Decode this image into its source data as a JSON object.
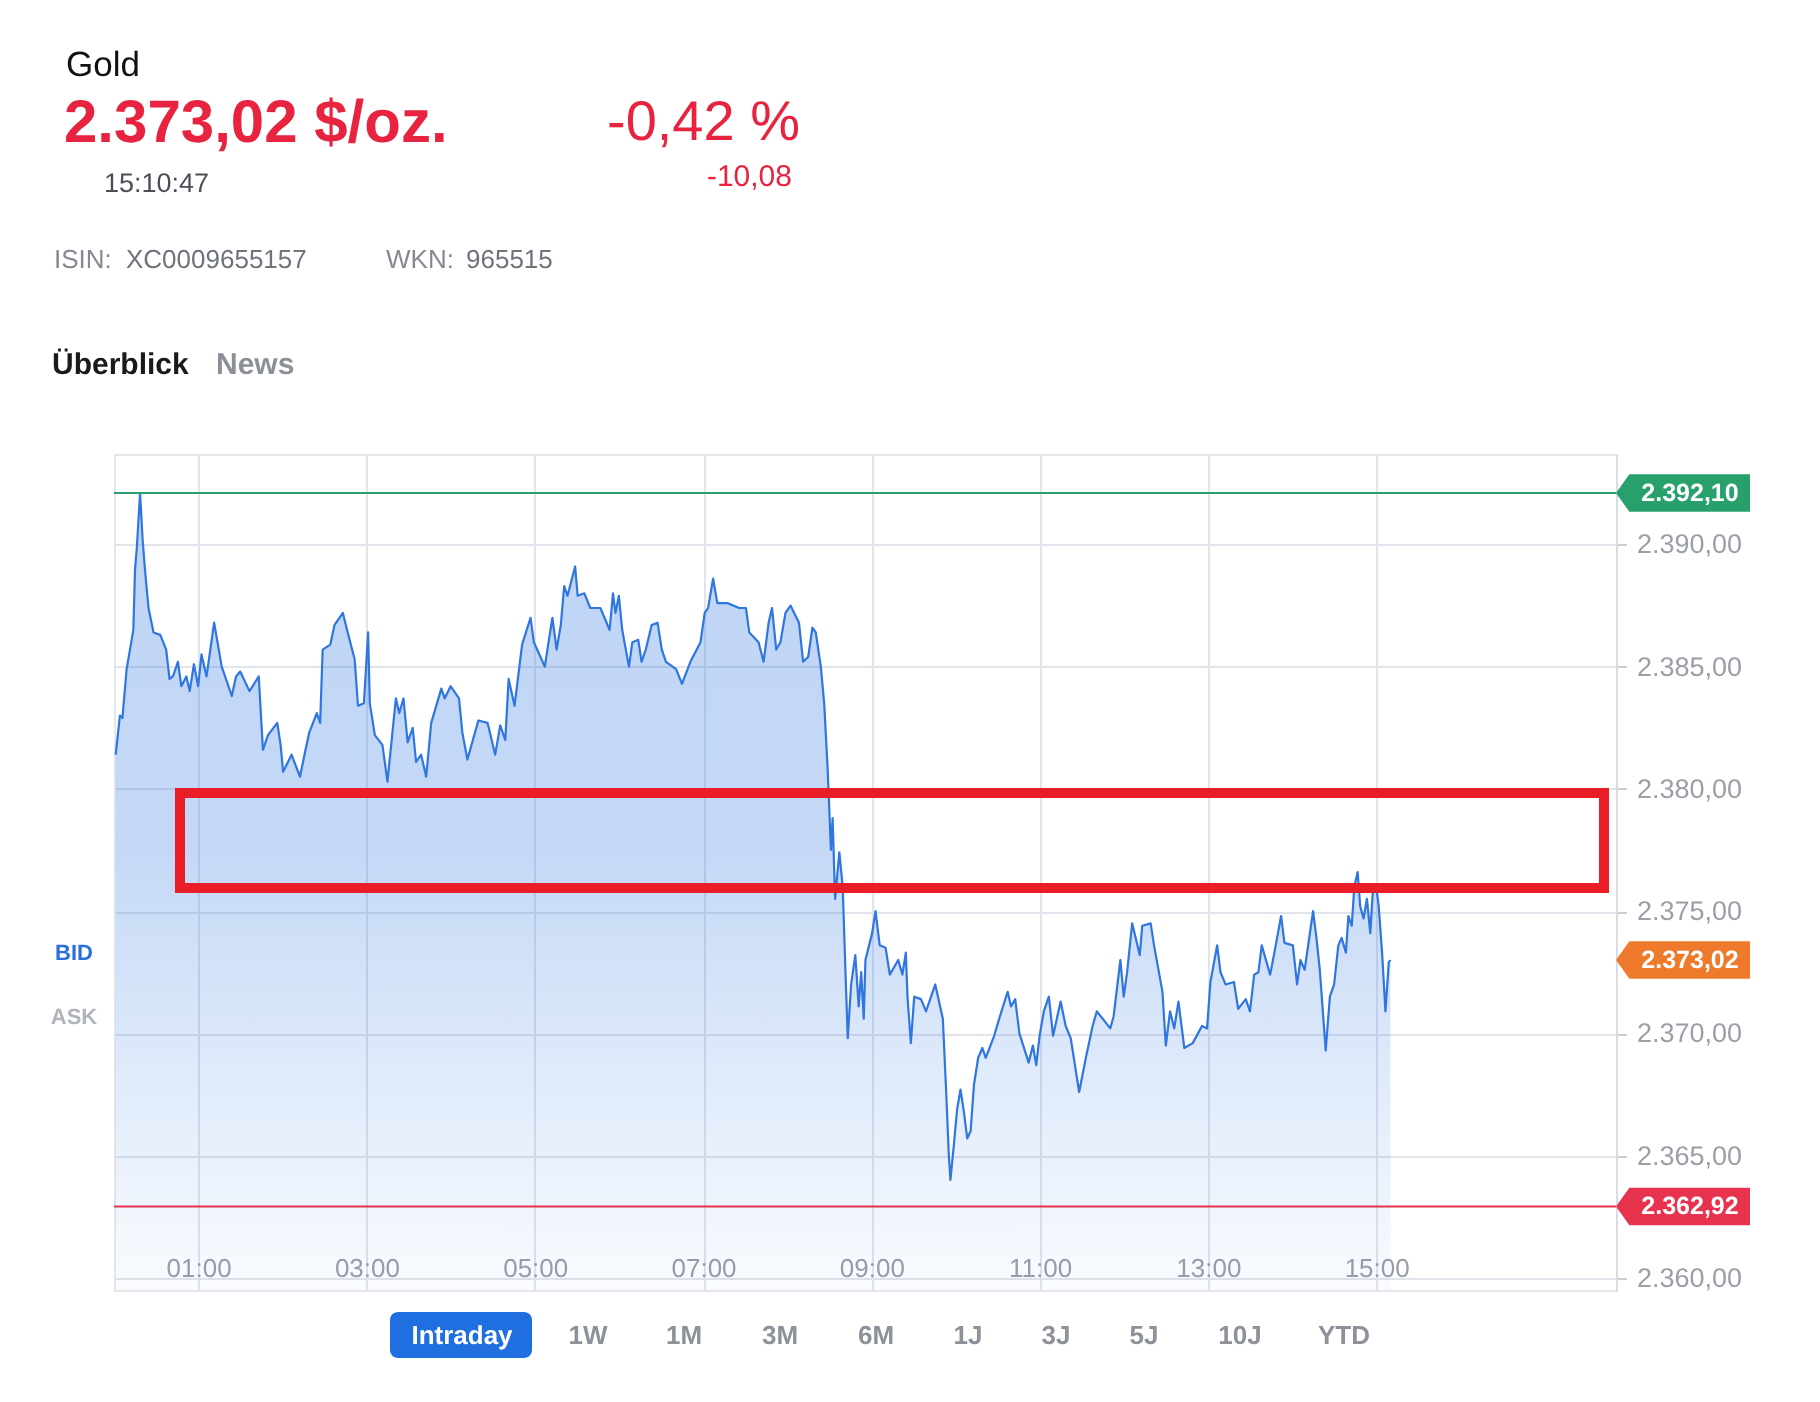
{
  "chart_data": {
    "type": "area",
    "title": "Gold",
    "subtitle": "2.373,02 $/oz.",
    "annotations": [
      "-0,42 %",
      "-10,08",
      "15:10:47",
      "ISIN:",
      "XC0009655157",
      "WKN:",
      "965515",
      "Überblick",
      "News",
      "BID",
      "ASK",
      "Intraday",
      "1W",
      "1M",
      "3M",
      "6M",
      "1J",
      "3J",
      "5J",
      "10J",
      "YTD",
      "2.373,02"
    ],
    "series": [
      {
        "color": "#2f76e0",
        "x": [
          0.02,
          0.07,
          0.1,
          0.15,
          0.23,
          0.25,
          0.27,
          0.31,
          0.34,
          0.37,
          0.41,
          0.47,
          0.55,
          0.62,
          0.66,
          0.7,
          0.76,
          0.8,
          0.86,
          0.9,
          0.95,
          1.0,
          1.04,
          1.1,
          1.19,
          1.28,
          1.4,
          1.45,
          1.5,
          1.61,
          1.72,
          1.77,
          1.83,
          1.94,
          1.98,
          2.01,
          2.11,
          2.21,
          2.27,
          2.32,
          2.41,
          2.45,
          2.48,
          2.57,
          2.62,
          2.72,
          2.77,
          2.86,
          2.9,
          2.97,
          3.02,
          3.04,
          3.1,
          3.19,
          3.25,
          3.35,
          3.39,
          3.44,
          3.49,
          3.55,
          3.59,
          3.65,
          3.71,
          3.77,
          3.89,
          3.93,
          4.0,
          4.1,
          4.14,
          4.2,
          4.33,
          4.44,
          4.53,
          4.59,
          4.65,
          4.69,
          4.76,
          4.85,
          4.95,
          4.99,
          5.12,
          5.16,
          5.21,
          5.26,
          5.31,
          5.35,
          5.39,
          5.48,
          5.51,
          5.59,
          5.66,
          5.78,
          5.89,
          5.93,
          5.96,
          6.0,
          6.04,
          6.12,
          6.16,
          6.23,
          6.27,
          6.32,
          6.39,
          6.46,
          6.51,
          6.56,
          6.68,
          6.75,
          6.85,
          6.97,
          7.02,
          7.06,
          7.12,
          7.17,
          7.29,
          7.43,
          7.51,
          7.55,
          7.66,
          7.72,
          7.78,
          7.82,
          7.87,
          7.92,
          7.98,
          8.04,
          8.14,
          8.19,
          8.25,
          8.3,
          8.34,
          8.4,
          8.44,
          8.48,
          8.52,
          8.54,
          8.57,
          8.62,
          8.66,
          8.69,
          8.72,
          8.76,
          8.81,
          8.85,
          8.88,
          8.91,
          8.93,
          9.01,
          9.05,
          9.1,
          9.17,
          9.22,
          9.32,
          9.37,
          9.41,
          9.43,
          9.47,
          9.51,
          9.59,
          9.65,
          9.76,
          9.85,
          9.89,
          9.92,
          9.94,
          9.98,
          10.02,
          10.06,
          10.1,
          10.14,
          10.18,
          10.22,
          10.27,
          10.32,
          10.36,
          10.46,
          10.52,
          10.62,
          10.66,
          10.71,
          10.76,
          10.87,
          10.92,
          10.96,
          11.0,
          11.05,
          11.11,
          11.16,
          11.25,
          11.31,
          11.37,
          11.47,
          11.55,
          11.63,
          11.68,
          11.84,
          11.88,
          11.96,
          12.0,
          12.04,
          12.1,
          12.19,
          12.22,
          12.32,
          12.36,
          12.46,
          12.5,
          12.55,
          12.6,
          12.65,
          12.72,
          12.82,
          12.93,
          12.99,
          13.03,
          13.11,
          13.15,
          13.21,
          13.31,
          13.36,
          13.45,
          13.5,
          13.55,
          13.6,
          13.64,
          13.74,
          13.79,
          13.87,
          13.91,
          14.01,
          14.06,
          14.1,
          14.15,
          14.25,
          14.29,
          14.33,
          14.4,
          14.45,
          14.5,
          14.55,
          14.59,
          14.64,
          14.67,
          14.71,
          14.74,
          14.78,
          14.81,
          14.85,
          14.89,
          14.93,
          14.96,
          15.0,
          15.03,
          15.07,
          15.11,
          15.15,
          15.17
        ],
        "values": [
          2381.4,
          2383.0,
          2382.9,
          2384.9,
          2386.5,
          2389.0,
          2389.8,
          2392.1,
          2390.2,
          2388.9,
          2387.4,
          2386.4,
          2386.3,
          2385.7,
          2384.5,
          2384.6,
          2385.2,
          2384.2,
          2384.6,
          2384.0,
          2385.1,
          2384.2,
          2385.5,
          2384.6,
          2386.8,
          2385.0,
          2383.8,
          2384.6,
          2384.8,
          2384.0,
          2384.6,
          2381.6,
          2382.2,
          2382.7,
          2381.8,
          2380.7,
          2381.4,
          2380.5,
          2381.5,
          2382.3,
          2383.1,
          2382.7,
          2385.7,
          2385.9,
          2386.7,
          2387.2,
          2386.5,
          2385.3,
          2383.4,
          2383.5,
          2386.4,
          2383.5,
          2382.2,
          2381.8,
          2380.3,
          2383.7,
          2383.1,
          2383.7,
          2381.9,
          2382.5,
          2381.1,
          2381.4,
          2380.5,
          2382.7,
          2384.1,
          2383.7,
          2384.2,
          2383.7,
          2382.3,
          2381.2,
          2382.8,
          2382.7,
          2381.4,
          2382.6,
          2382.0,
          2384.5,
          2383.4,
          2385.9,
          2387.0,
          2386.0,
          2385.0,
          2385.9,
          2387.0,
          2385.7,
          2386.7,
          2388.3,
          2387.9,
          2389.1,
          2387.9,
          2388.0,
          2387.4,
          2387.4,
          2386.5,
          2388.0,
          2387.2,
          2387.9,
          2386.5,
          2385.0,
          2386.0,
          2386.1,
          2385.2,
          2385.7,
          2386.7,
          2386.8,
          2385.7,
          2385.2,
          2384.9,
          2384.3,
          2385.2,
          2386.0,
          2387.2,
          2387.4,
          2388.6,
          2387.6,
          2387.6,
          2387.4,
          2387.4,
          2386.4,
          2386.0,
          2385.2,
          2386.8,
          2387.4,
          2385.7,
          2386.0,
          2387.2,
          2387.5,
          2386.8,
          2385.2,
          2385.4,
          2386.6,
          2386.4,
          2385.0,
          2383.5,
          2380.9,
          2377.5,
          2378.8,
          2375.5,
          2377.4,
          2376.0,
          2372.8,
          2369.8,
          2372.0,
          2373.2,
          2371.1,
          2372.5,
          2370.6,
          2373.0,
          2374.1,
          2375.0,
          2373.6,
          2373.5,
          2372.4,
          2373.0,
          2372.4,
          2373.3,
          2371.5,
          2369.6,
          2371.5,
          2371.4,
          2370.9,
          2372.0,
          2370.6,
          2367.6,
          2365.1,
          2364.0,
          2365.4,
          2366.9,
          2367.7,
          2366.8,
          2365.7,
          2366.0,
          2367.9,
          2369.0,
          2369.4,
          2369.0,
          2369.9,
          2370.6,
          2371.7,
          2371.1,
          2371.4,
          2370.0,
          2368.8,
          2369.5,
          2368.7,
          2369.9,
          2370.9,
          2371.5,
          2369.9,
          2371.3,
          2370.3,
          2369.8,
          2367.6,
          2369.0,
          2370.3,
          2370.9,
          2370.2,
          2370.7,
          2373.0,
          2371.5,
          2372.5,
          2374.5,
          2373.2,
          2374.4,
          2374.5,
          2373.6,
          2371.7,
          2369.5,
          2370.9,
          2370.2,
          2371.3,
          2369.4,
          2369.6,
          2370.3,
          2370.2,
          2372.1,
          2373.6,
          2372.5,
          2372.0,
          2372.1,
          2371.0,
          2371.4,
          2370.9,
          2372.4,
          2372.5,
          2373.6,
          2372.4,
          2373.3,
          2374.8,
          2373.7,
          2373.6,
          2372.0,
          2373.0,
          2372.6,
          2375.0,
          2373.9,
          2372.6,
          2369.3,
          2371.5,
          2372.0,
          2373.6,
          2373.9,
          2373.3,
          2374.8,
          2374.4,
          2376.0,
          2376.6,
          2375.2,
          2374.7,
          2375.5,
          2374.1,
          2375.8,
          2376.0,
          2375.2,
          2373.3,
          2370.9,
          2372.9,
          2373.0
        ]
      }
    ],
    "xlim": [
      0,
      17.85
    ],
    "ylim": [
      2359.5,
      2393.7
    ],
    "xticks": [
      {
        "value": 1,
        "label": "01:00"
      },
      {
        "value": 3,
        "label": "03:00"
      },
      {
        "value": 5,
        "label": "05:00"
      },
      {
        "value": 7,
        "label": "07:00"
      },
      {
        "value": 9,
        "label": "09:00"
      },
      {
        "value": 11,
        "label": "11:00"
      },
      {
        "value": 13,
        "label": "13:00"
      },
      {
        "value": 15,
        "label": "15:00"
      }
    ],
    "yticks": [
      {
        "value": 2360,
        "label": "2.360,00"
      },
      {
        "value": 2365,
        "label": "2.365,00"
      },
      {
        "value": 2370,
        "label": "2.370,00"
      },
      {
        "value": 2375,
        "label": "2.375,00"
      },
      {
        "value": 2380,
        "label": "2.380,00"
      },
      {
        "value": 2385,
        "label": "2.385,00"
      },
      {
        "value": 2390,
        "label": "2.390,00"
      }
    ],
    "ref_lines": [
      {
        "axis": "y",
        "value": 2392.1,
        "label": "2.392,10",
        "color": "#27a06c"
      },
      {
        "axis": "y",
        "value": 2362.92,
        "label": "2.362,92",
        "color": "#e8334f"
      }
    ],
    "grid": true
  }
}
